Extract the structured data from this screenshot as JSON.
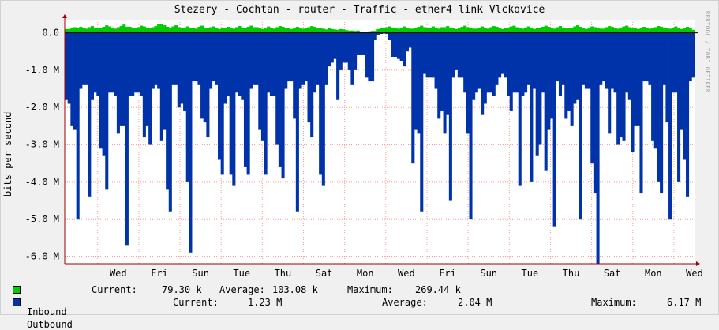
{
  "title": "Stezery - Cochtan - router - Traffic - ether4  link Vlckovice",
  "credit": "RRDTOOL / TOBI OETIKER",
  "colors": {
    "inbound": "#00cc00",
    "outbound": "#0033aa",
    "grid": "#ff9999",
    "background": "#f0f0f0",
    "plot": "#ffffff",
    "axis": "#a00000"
  },
  "legend": {
    "inbound": {
      "label": "Inbound",
      "current_label": "Current:",
      "current": "79.30 k",
      "average_label": "Average:",
      "average": "103.08 k",
      "maximum_label": "Maximum:",
      "maximum": "269.44 k"
    },
    "outbound": {
      "label": "Outbound",
      "current_label": "Current:",
      "current": "1.23 M",
      "average_label": "Average:",
      "average": "2.04 M",
      "maximum_label": "Maximum:",
      "maximum": "6.17 M"
    }
  },
  "chart_data": {
    "type": "area",
    "title": "Stezery - Cochtan - router - Traffic - ether4  link Vlckovice",
    "ylabel": "bits per second",
    "ylim": [
      -6.2,
      0.35
    ],
    "yticks": [
      0.0,
      -1.0,
      -2.0,
      -3.0,
      -4.0,
      -5.0,
      -6.0
    ],
    "ytick_labels": [
      "0.0",
      "-1.0 M",
      "-2.0 M",
      "-3.0 M",
      "-4.0 M",
      "-5.0 M",
      "-6.0 M"
    ],
    "xticks": [
      "Wed",
      "Fri",
      "Sun",
      "Tue",
      "Thu",
      "Sat",
      "Mon",
      "Wed",
      "Fri",
      "Sun",
      "Tue",
      "Thu",
      "Sat",
      "Mon",
      "Wed"
    ],
    "x_unit": "days (Tue 00:00 = 0)",
    "x_range": [
      0.2,
      15.5
    ],
    "grid": true,
    "series": [
      {
        "name": "Inbound",
        "values_note": "bits per second (millions), positive",
        "values": [
          0.1,
          0.13,
          0.15,
          0.14,
          0.16,
          0.12,
          0.11,
          0.15,
          0.18,
          0.13,
          0.12,
          0.16,
          0.2,
          0.17,
          0.14,
          0.11,
          0.15,
          0.18,
          0.22,
          0.16,
          0.14,
          0.12,
          0.15,
          0.19,
          0.17,
          0.13,
          0.12,
          0.15,
          0.18,
          0.23,
          0.2,
          0.16,
          0.13,
          0.17,
          0.2,
          0.15,
          0.12,
          0.14,
          0.17,
          0.13,
          0.11,
          0.16,
          0.19,
          0.14,
          0.12,
          0.15,
          0.17,
          0.13,
          0.1,
          0.14,
          0.16,
          0.12,
          0.11,
          0.15,
          0.18,
          0.14,
          0.12,
          0.16,
          0.19,
          0.15,
          0.12,
          0.1,
          0.14,
          0.17,
          0.13,
          0.11,
          0.15,
          0.18,
          0.16,
          0.12,
          0.1,
          0.13,
          0.16,
          0.14,
          0.11,
          0.12,
          0.15,
          0.18,
          0.16,
          0.13,
          0.11,
          0.09,
          0.12,
          0.1,
          0.09,
          0.08,
          0.1,
          0.09,
          0.07,
          0.06,
          0.05,
          0.06,
          0.03,
          0.02,
          0.02,
          0.04,
          0.05,
          0.05,
          0.1,
          0.13,
          0.15,
          0.17,
          0.14,
          0.12,
          0.11,
          0.14,
          0.17,
          0.13,
          0.11,
          0.13,
          0.16,
          0.19,
          0.15,
          0.12,
          0.14,
          0.17,
          0.13,
          0.11,
          0.15,
          0.18,
          0.14,
          0.12,
          0.1,
          0.13,
          0.16,
          0.19,
          0.15,
          0.12,
          0.11,
          0.14,
          0.17,
          0.13,
          0.11,
          0.15,
          0.18,
          0.16,
          0.12,
          0.1,
          0.14,
          0.17,
          0.19,
          0.15,
          0.12,
          0.11,
          0.14,
          0.17,
          0.13,
          0.1,
          0.12,
          0.16,
          0.19,
          0.16,
          0.13,
          0.11,
          0.15,
          0.18,
          0.14,
          0.12,
          0.13,
          0.17,
          0.2,
          0.16,
          0.12,
          0.1,
          0.14,
          0.17,
          0.15,
          0.12,
          0.11,
          0.15,
          0.18,
          0.16,
          0.13,
          0.11,
          0.14,
          0.17,
          0.19,
          0.15,
          0.12,
          0.1,
          0.13,
          0.16,
          0.14,
          0.11,
          0.12,
          0.15,
          0.18,
          0.16,
          0.13,
          0.11,
          0.14,
          0.17,
          0.13,
          0.1,
          0.13,
          0.16,
          0.12,
          0.08
        ]
      },
      {
        "name": "Outbound",
        "values_note": "bits per second (millions), drawn negative",
        "values": [
          1.8,
          1.9,
          2.5,
          2.6,
          5.0,
          1.5,
          1.4,
          1.4,
          4.4,
          1.8,
          1.6,
          1.7,
          3.1,
          3.3,
          4.2,
          1.6,
          1.6,
          1.7,
          2.7,
          2.5,
          2.5,
          5.7,
          1.7,
          1.7,
          1.6,
          1.6,
          1.7,
          2.8,
          2.5,
          3.0,
          1.5,
          1.4,
          1.5,
          2.9,
          2.6,
          4.2,
          4.8,
          1.4,
          1.4,
          2.0,
          1.9,
          2.1,
          4.0,
          5.9,
          1.3,
          1.3,
          1.4,
          2.3,
          2.4,
          2.8,
          1.5,
          1.3,
          1.4,
          3.4,
          3.8,
          1.9,
          1.7,
          3.8,
          4.1,
          1.6,
          1.7,
          1.8,
          3.6,
          3.8,
          1.5,
          1.4,
          1.4,
          2.6,
          2.9,
          3.8,
          1.6,
          1.7,
          1.7,
          3.0,
          3.6,
          3.9,
          1.5,
          1.3,
          1.3,
          2.3,
          4.8,
          1.5,
          1.4,
          1.3,
          2.4,
          2.8,
          1.6,
          1.4,
          3.8,
          4.1,
          1.4,
          0.9,
          0.8,
          0.7,
          1.8,
          1.0,
          0.8,
          0.8,
          1.0,
          1.4,
          1.0,
          0.6,
          0.6,
          0.6,
          1.2,
          1.3,
          1.3,
          0.2,
          0.05,
          0.03,
          0.02,
          0.03,
          0.2,
          0.65,
          0.65,
          0.7,
          0.75,
          0.9,
          0.5,
          0.4,
          3.5,
          2.6,
          2.7,
          4.8,
          1.1,
          1.2,
          1.2,
          1.2,
          1.5,
          2.3,
          2.1,
          2.7,
          2.2,
          4.5,
          1.2,
          1.0,
          1.2,
          1.2,
          1.6,
          2.7,
          5.0,
          1.8,
          1.6,
          1.5,
          2.2,
          1.9,
          1.6,
          1.6,
          1.7,
          1.4,
          1.2,
          1.1,
          1.2,
          1.7,
          2.1,
          1.6,
          1.6,
          4.1,
          1.7,
          1.6,
          1.4,
          4.0,
          1.5,
          3.3,
          3.0,
          1.6,
          3.7,
          2.6,
          2.3,
          5.2,
          1.3,
          1.7,
          1.4,
          2.3,
          2.1,
          2.5,
          1.9,
          1.8,
          5.0,
          1.4,
          1.5,
          1.5,
          3.5,
          4.3,
          6.2,
          1.4,
          1.3,
          1.5,
          2.7,
          1.5,
          1.6,
          3.0,
          2.8,
          2.9,
          1.6,
          1.8,
          3.2,
          2.5,
          2.5,
          4.3,
          1.3,
          1.3,
          1.4,
          2.9,
          3.1,
          4.0,
          4.3,
          1.4,
          2.4,
          5.0,
          1.6,
          1.6,
          4.0,
          2.6,
          3.4,
          4.4,
          1.3,
          1.2
        ]
      }
    ]
  }
}
